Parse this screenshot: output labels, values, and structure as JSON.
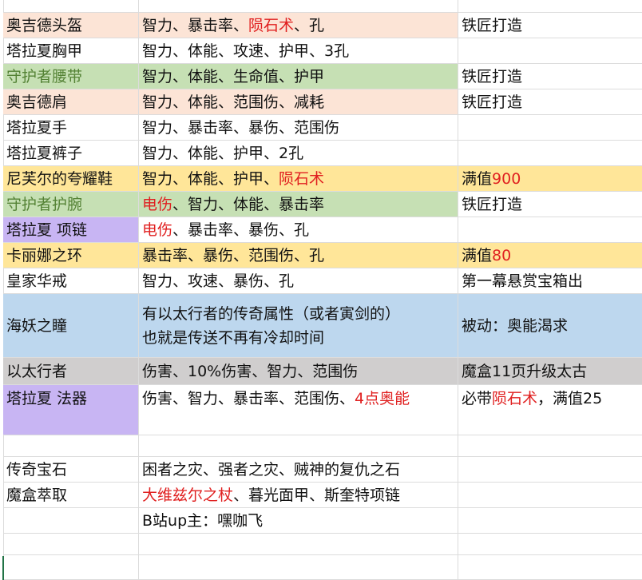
{
  "colors": {
    "peach": "#fce4d6",
    "green": "#c6e0b4",
    "yellow": "#ffe699",
    "purple": "#c8b5f3",
    "blue": "#bdd7ee",
    "gray": "#d0cece",
    "red": "#e02020",
    "green_text": "#548235"
  },
  "rows": [
    {
      "cells": [
        [],
        [],
        []
      ],
      "h": 16
    },
    {
      "bg": [
        "peach",
        "peach",
        null
      ],
      "cells": [
        [
          {
            "t": "奥吉德头盔"
          }
        ],
        [
          {
            "t": "智力、暴击率、"
          },
          {
            "t": "陨石术",
            "red": true
          },
          {
            "t": "、孔"
          }
        ],
        [
          {
            "t": "铁匠打造"
          }
        ]
      ]
    },
    {
      "cells": [
        [
          {
            "t": "塔拉夏胸甲"
          }
        ],
        [
          {
            "t": "智力、体能、攻速、护甲、3孔"
          }
        ],
        []
      ]
    },
    {
      "bg": [
        "green",
        "green",
        null
      ],
      "nameGreen": true,
      "cells": [
        [
          {
            "t": "守护者腰带"
          }
        ],
        [
          {
            "t": "智力、体能、生命值、护甲"
          }
        ],
        [
          {
            "t": "铁匠打造"
          }
        ]
      ]
    },
    {
      "bg": [
        "peach",
        "peach",
        null
      ],
      "cells": [
        [
          {
            "t": "奥吉德肩"
          }
        ],
        [
          {
            "t": "智力、体能、范围伤、减耗"
          }
        ],
        [
          {
            "t": "铁匠打造"
          }
        ]
      ]
    },
    {
      "cells": [
        [
          {
            "t": "塔拉夏手"
          }
        ],
        [
          {
            "t": "智力、暴击率、暴伤、范围伤"
          }
        ],
        []
      ]
    },
    {
      "cells": [
        [
          {
            "t": "塔拉夏裤子"
          }
        ],
        [
          {
            "t": "智力、体能、护甲、2孔"
          }
        ],
        []
      ]
    },
    {
      "bg": [
        "yellow",
        "yellow",
        "yellow"
      ],
      "cells": [
        [
          {
            "t": "尼芙尔的夸耀鞋"
          }
        ],
        [
          {
            "t": "智力、体能、护甲、"
          },
          {
            "t": "陨石术",
            "red": true
          }
        ],
        [
          {
            "t": "满值"
          },
          {
            "t": "900",
            "red": true
          }
        ]
      ]
    },
    {
      "bg": [
        "green",
        "green",
        null
      ],
      "nameGreen": true,
      "cells": [
        [
          {
            "t": "守护者护腕"
          }
        ],
        [
          {
            "t": "电伤",
            "red": true
          },
          {
            "t": "、智力、体能、暴击率"
          }
        ],
        [
          {
            "t": "铁匠打造"
          }
        ]
      ]
    },
    {
      "bg": [
        "purple",
        null,
        null
      ],
      "cells": [
        [
          {
            "t": "塔拉夏 项链"
          }
        ],
        [
          {
            "t": "电伤",
            "red": true
          },
          {
            "t": "、暴击率、暴伤、孔"
          }
        ],
        []
      ]
    },
    {
      "bg": [
        "yellow",
        "yellow",
        "yellow"
      ],
      "cells": [
        [
          {
            "t": "卡丽娜之环"
          }
        ],
        [
          {
            "t": "暴击率、暴伤、范围伤、孔"
          }
        ],
        [
          {
            "t": "满值"
          },
          {
            "t": "80",
            "red": true
          }
        ]
      ]
    },
    {
      "cells": [
        [
          {
            "t": "皇家华戒"
          }
        ],
        [
          {
            "t": "智力、攻速、暴伤、孔"
          }
        ],
        [
          {
            "t": "第一幕悬赏宝箱出"
          }
        ]
      ]
    },
    {
      "bg": [
        "blue",
        "blue",
        "blue"
      ],
      "h": 80,
      "cells": [
        [
          {
            "t": "海妖之瞳"
          }
        ],
        [
          {
            "t": "有以太行者的传奇属性（或者寅剑的）",
            "br": true
          },
          {
            "t": "也就是传送不再有冷却时间"
          }
        ],
        [
          {
            "t": "被动：奥能渴求"
          }
        ]
      ]
    },
    {
      "bg": [
        "gray",
        "gray",
        "gray"
      ],
      "h": 34,
      "cells": [
        [
          {
            "t": "以太行者"
          }
        ],
        [
          {
            "t": "伤害、10%伤害、智力、范围伤"
          }
        ],
        [
          {
            "t": "魔盒11页升级太古"
          }
        ]
      ]
    },
    {
      "bg": [
        "purple",
        null,
        null
      ],
      "h": 63,
      "top": true,
      "cells": [
        [
          {
            "t": "塔拉夏 法器"
          }
        ],
        [
          {
            "t": "伤害、智力、暴击率、范围伤、"
          },
          {
            "t": "4点奥能",
            "red": true
          }
        ],
        [
          {
            "t": "必带"
          },
          {
            "t": "陨石术",
            "red": true
          },
          {
            "t": "，满值25"
          }
        ]
      ]
    },
    {
      "h": 27,
      "cells": [
        [],
        [],
        []
      ]
    },
    {
      "cells": [
        [
          {
            "t": "传奇宝石"
          }
        ],
        [
          {
            "t": "困者之灾、强者之灾、贼神的复仇之石"
          }
        ],
        []
      ]
    },
    {
      "cells": [
        [
          {
            "t": "魔盒萃取"
          }
        ],
        [
          {
            "t": "大维兹尔之杖",
            "red": true
          },
          {
            "t": "、暮光面甲、斯奎特项链"
          }
        ],
        []
      ]
    },
    {
      "cells": [
        [],
        [
          {
            "t": "B站up主：嘿咖飞"
          }
        ],
        []
      ]
    },
    {
      "h": 27,
      "cells": [
        [],
        [],
        []
      ]
    },
    {
      "h": 31,
      "cells": [
        [],
        [],
        []
      ]
    }
  ]
}
